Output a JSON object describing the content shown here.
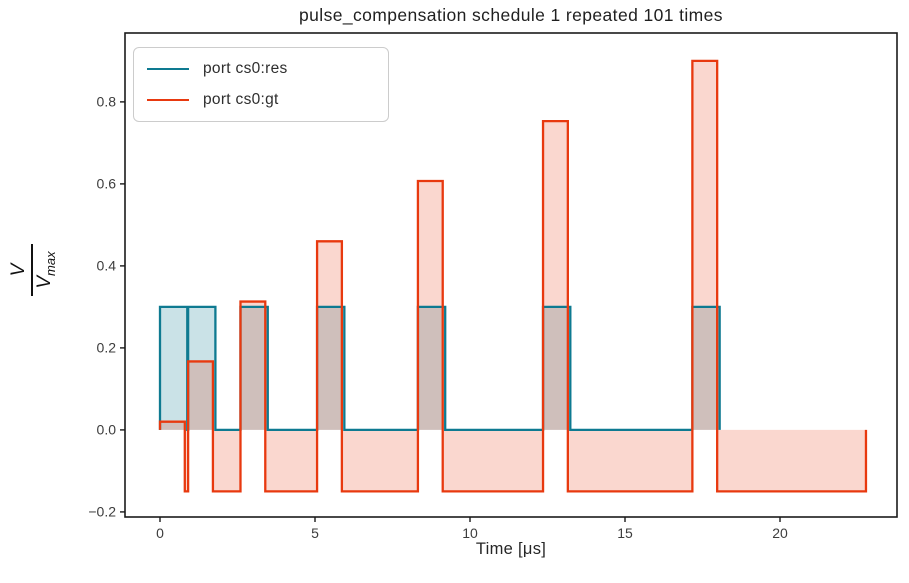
{
  "figure": {
    "title": "pulse_compensation schedule 1 repeated 101 times",
    "xlabel": "Time [μs]",
    "ylabel": {
      "numerator": "V",
      "denominator_base": "V",
      "denominator_sub": "max"
    }
  },
  "chart_data": {
    "type": "area",
    "subtype": "step-pulse-diagram",
    "title": "pulse_compensation schedule 1 repeated 101 times",
    "xlabel": "Time [μs]",
    "ylabel": "V / V_max",
    "grid": false,
    "legend_position": "upper left",
    "xlim": [
      -1.129,
      23.774
    ],
    "ylim": [
      -0.2124,
      0.968
    ],
    "xticks": [
      0,
      5,
      10,
      15,
      20
    ],
    "xtick_labels": [
      "0",
      "5",
      "10",
      "15",
      "20"
    ],
    "yticks": [
      -0.2,
      0.0,
      0.2,
      0.4,
      0.6,
      0.8
    ],
    "ytick_labels": [
      "−0.2",
      "0.0",
      "0.2",
      "0.4",
      "0.6",
      "0.8"
    ],
    "series": [
      {
        "name": "port cs0:res",
        "color": "#0e7a91",
        "fill_opacity": 0.22,
        "line_width": 2.3,
        "points": [
          [
            0,
            0
          ],
          [
            0,
            0.3
          ],
          [
            0.88,
            0.3
          ],
          [
            0.88,
            0
          ],
          [
            0.907,
            0
          ],
          [
            0.907,
            0.3
          ],
          [
            1.787,
            0.3
          ],
          [
            1.787,
            0
          ],
          [
            2.596,
            0
          ],
          [
            2.596,
            0.3
          ],
          [
            3.476,
            0.3
          ],
          [
            3.476,
            0
          ],
          [
            5.067,
            0
          ],
          [
            5.067,
            0.3
          ],
          [
            5.947,
            0.3
          ],
          [
            5.947,
            0
          ],
          [
            8.32,
            0
          ],
          [
            8.32,
            0.3
          ],
          [
            9.2,
            0.3
          ],
          [
            9.2,
            0
          ],
          [
            12.356,
            0
          ],
          [
            12.356,
            0.3
          ],
          [
            13.236,
            0.3
          ],
          [
            13.236,
            0
          ],
          [
            17.173,
            0
          ],
          [
            17.173,
            0.3
          ],
          [
            18.053,
            0.3
          ],
          [
            18.053,
            0
          ]
        ]
      },
      {
        "name": "port cs0:gt",
        "color": "#e8390f",
        "fill_opacity": 0.2,
        "line_width": 2.3,
        "points": [
          [
            0,
            0
          ],
          [
            0,
            0.02
          ],
          [
            0.8,
            0.02
          ],
          [
            0.8,
            -0.15
          ],
          [
            0.907,
            -0.15
          ],
          [
            0.907,
            0.167
          ],
          [
            1.707,
            0.167
          ],
          [
            1.707,
            -0.15
          ],
          [
            2.596,
            -0.15
          ],
          [
            2.596,
            0.313
          ],
          [
            3.396,
            0.313
          ],
          [
            3.396,
            -0.15
          ],
          [
            5.067,
            -0.15
          ],
          [
            5.067,
            0.46
          ],
          [
            5.867,
            0.46
          ],
          [
            5.867,
            -0.15
          ],
          [
            8.32,
            -0.15
          ],
          [
            8.32,
            0.607
          ],
          [
            9.12,
            0.607
          ],
          [
            9.12,
            -0.15
          ],
          [
            12.356,
            -0.15
          ],
          [
            12.356,
            0.753
          ],
          [
            13.156,
            0.753
          ],
          [
            13.156,
            -0.15
          ],
          [
            17.173,
            -0.15
          ],
          [
            17.173,
            0.9
          ],
          [
            17.973,
            0.9
          ],
          [
            17.973,
            -0.15
          ],
          [
            22.773,
            -0.15
          ],
          [
            22.773,
            0
          ]
        ]
      }
    ],
    "axis_colors": {
      "spine": "#1a1a1a",
      "tick": "#1a1a1a",
      "tick_label": "#3d3d3d"
    }
  },
  "legend": {
    "items": [
      {
        "label": "port cs0:res"
      },
      {
        "label": "port cs0:gt"
      }
    ]
  }
}
